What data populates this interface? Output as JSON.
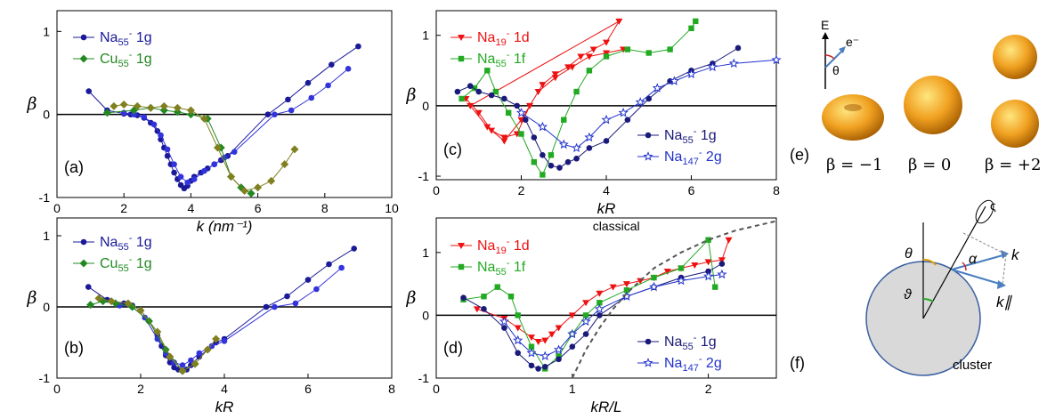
{
  "chart_data": [
    {
      "id": "a",
      "type": "line",
      "panel_label": "(a)",
      "xlabel": "k (nm⁻¹)",
      "ylabel": "β",
      "xlim": [
        0,
        10
      ],
      "ylim": [
        -1,
        1.25
      ],
      "xticks": [
        "0",
        "2",
        "4",
        "6",
        "8",
        "10"
      ],
      "yticks": [
        "-1",
        "0",
        "1"
      ],
      "series": [
        {
          "name": "Na55- 1g",
          "color": "#1a1a99",
          "marker": "circle",
          "x": [
            0.95,
            1.5,
            2.0,
            2.2,
            2.4,
            2.6,
            2.8,
            3.0,
            3.1,
            3.2,
            3.3,
            3.4,
            3.5,
            3.6,
            3.7,
            3.8,
            3.9,
            4.0,
            4.1,
            4.3,
            4.5,
            4.7,
            4.9,
            5.1,
            6.3,
            6.9,
            7.5,
            8.2,
            9.0
          ],
          "y": [
            0.28,
            0.05,
            0.01,
            0.0,
            -0.01,
            -0.04,
            -0.1,
            -0.2,
            -0.3,
            -0.4,
            -0.5,
            -0.6,
            -0.7,
            -0.78,
            -0.85,
            -0.89,
            -0.86,
            -0.8,
            -0.75,
            -0.7,
            -0.65,
            -0.6,
            -0.55,
            -0.5,
            0.0,
            0.18,
            0.38,
            0.6,
            0.82
          ]
        },
        {
          "name": "",
          "color": "#3333dd",
          "marker": "circle",
          "x": [
            2.0,
            2.3,
            2.6,
            2.9,
            3.1,
            3.3,
            3.5,
            3.7,
            3.9,
            4.1,
            4.4,
            4.7,
            5.0,
            5.3,
            6.5,
            7.0,
            7.6,
            8.1,
            8.7
          ],
          "y": [
            0.02,
            0.0,
            -0.03,
            -0.12,
            -0.25,
            -0.42,
            -0.6,
            -0.75,
            -0.82,
            -0.78,
            -0.68,
            -0.6,
            -0.52,
            -0.45,
            0.0,
            0.05,
            0.2,
            0.35,
            0.55
          ]
        },
        {
          "name": "Cu55- 1g",
          "color": "#228822",
          "marker": "diamond",
          "x": [
            1.5,
            2.3,
            2.8,
            3.2,
            3.6,
            4.0,
            4.5,
            4.9,
            5.2,
            5.5,
            5.8
          ],
          "y": [
            0.02,
            0.05,
            0.08,
            0.05,
            0.03,
            0.0,
            -0.05,
            -0.4,
            -0.75,
            -0.88,
            -0.95
          ]
        },
        {
          "name": "",
          "color": "#808020",
          "marker": "diamond",
          "x": [
            1.7,
            2.0,
            2.4,
            2.8,
            3.2,
            3.6,
            4.0,
            4.4,
            4.8,
            5.2,
            5.6,
            6.0,
            6.4,
            6.8,
            7.1
          ],
          "y": [
            0.1,
            0.12,
            0.1,
            0.08,
            0.1,
            0.08,
            0.05,
            -0.05,
            -0.4,
            -0.75,
            -0.92,
            -0.88,
            -0.8,
            -0.6,
            -0.42
          ]
        }
      ]
    },
    {
      "id": "b",
      "type": "line",
      "panel_label": "(b)",
      "xlabel": "kR",
      "ylabel": "β",
      "xlim": [
        0,
        8
      ],
      "ylim": [
        -1,
        1.25
      ],
      "xticks": [
        "0",
        "2",
        "4",
        "6",
        "8"
      ],
      "yticks": [
        "-1",
        "0",
        "1"
      ],
      "series": [
        {
          "name": "Na55- 1g",
          "color": "#1a1a99",
          "marker": "circle",
          "x": [
            0.75,
            1.2,
            1.6,
            1.8,
            2.0,
            2.2,
            2.4,
            2.5,
            2.6,
            2.7,
            2.8,
            2.9,
            3.0,
            3.1,
            3.2,
            3.4,
            3.6,
            3.8,
            4.0,
            5.0,
            5.5,
            6.0,
            6.5,
            7.1
          ],
          "y": [
            0.28,
            0.1,
            0.05,
            0.02,
            -0.05,
            -0.2,
            -0.4,
            -0.55,
            -0.68,
            -0.78,
            -0.85,
            -0.88,
            -0.9,
            -0.88,
            -0.82,
            -0.7,
            -0.6,
            -0.5,
            -0.45,
            0.0,
            0.15,
            0.38,
            0.6,
            0.82
          ]
        },
        {
          "name": "",
          "color": "#3333dd",
          "marker": "circle",
          "x": [
            1.5,
            1.8,
            2.1,
            2.4,
            2.6,
            2.8,
            3.0,
            3.2,
            3.4,
            3.7,
            4.0,
            5.2,
            5.7,
            6.2,
            6.8
          ],
          "y": [
            0.02,
            0.0,
            -0.15,
            -0.45,
            -0.65,
            -0.78,
            -0.82,
            -0.75,
            -0.65,
            -0.55,
            -0.48,
            0.0,
            0.05,
            0.25,
            0.55
          ]
        },
        {
          "name": "Cu55- 1g",
          "color": "#228822",
          "marker": "diamond",
          "x": [
            0.8,
            1.1,
            1.4,
            1.8,
            2.2,
            2.6,
            3.0,
            3.3
          ],
          "y": [
            0.03,
            0.08,
            0.05,
            0.0,
            -0.2,
            -0.6,
            -0.9,
            -0.8
          ]
        },
        {
          "name": "",
          "color": "#808020",
          "marker": "diamond",
          "x": [
            1.0,
            1.3,
            1.7,
            2.0,
            2.4,
            2.7,
            3.0,
            3.3,
            3.6,
            3.8
          ],
          "y": [
            0.12,
            0.08,
            0.05,
            -0.05,
            -0.35,
            -0.7,
            -0.9,
            -0.8,
            -0.6,
            -0.45
          ]
        }
      ]
    },
    {
      "id": "c",
      "type": "line",
      "panel_label": "(c)",
      "xlabel": "kR",
      "ylabel": "β",
      "xlim": [
        0,
        8
      ],
      "ylim": [
        -1.05,
        1.35
      ],
      "xticks": [
        "0",
        "2",
        "4",
        "6",
        "8"
      ],
      "yticks": [
        "-1",
        "0",
        "1"
      ],
      "series": [
        {
          "name": "Na19- 1d",
          "color": "#ee1111",
          "marker": "tri",
          "x": [
            0.7,
            1.0,
            1.3,
            1.6,
            1.9,
            2.2,
            2.5,
            2.8,
            3.1,
            3.4,
            3.7,
            4.0,
            4.3,
            0.8,
            1.2,
            1.6,
            2.0,
            2.4,
            2.8,
            3.2,
            3.6,
            4.0,
            4.4
          ],
          "y": [
            0.1,
            -0.1,
            -0.35,
            -0.45,
            -0.4,
            0.0,
            0.3,
            0.45,
            0.55,
            0.7,
            0.8,
            0.9,
            1.2,
            0.0,
            -0.3,
            -0.5,
            -0.2,
            0.2,
            0.4,
            0.55,
            0.7,
            0.75,
            0.8
          ]
        },
        {
          "name": "Na55- 1f",
          "color": "#22aa22",
          "marker": "square",
          "x": [
            0.6,
            0.9,
            1.2,
            1.4,
            1.7,
            2.0,
            2.3,
            2.5,
            2.7,
            3.0,
            3.3,
            3.6,
            4.0,
            4.5,
            5.0,
            5.5,
            6.0,
            6.1
          ],
          "y": [
            0.1,
            0.25,
            0.5,
            0.2,
            -0.1,
            -0.4,
            -0.8,
            -0.98,
            -0.7,
            -0.2,
            0.2,
            0.5,
            0.7,
            0.8,
            0.75,
            0.8,
            1.1,
            1.2
          ]
        },
        {
          "name": "Na55- 1g",
          "color": "#1a1a7a",
          "marker": "circle",
          "x": [
            0.5,
            0.8,
            1.0,
            1.3,
            1.6,
            1.9,
            2.1,
            2.3,
            2.5,
            2.7,
            2.9,
            3.1,
            3.3,
            3.6,
            4.0,
            4.5,
            5.0,
            5.5,
            6.0,
            6.5,
            7.1
          ],
          "y": [
            0.2,
            0.28,
            0.2,
            0.15,
            0.1,
            0.0,
            -0.2,
            -0.45,
            -0.7,
            -0.85,
            -0.88,
            -0.8,
            -0.75,
            -0.6,
            -0.5,
            -0.2,
            0.1,
            0.35,
            0.5,
            0.6,
            0.82
          ]
        },
        {
          "name": "Na147- 2g",
          "color": "#2233cc",
          "marker": "star",
          "x": [
            2.0,
            2.5,
            3.0,
            3.3,
            3.6,
            4.0,
            4.4,
            4.8,
            5.2,
            5.6,
            6.0,
            6.5,
            7.0,
            8.0
          ],
          "y": [
            -0.1,
            -0.3,
            -0.55,
            -0.6,
            -0.45,
            -0.2,
            -0.1,
            0.05,
            0.25,
            0.35,
            0.45,
            0.55,
            0.6,
            0.65
          ]
        }
      ]
    },
    {
      "id": "d",
      "type": "line",
      "panel_label": "(d)",
      "xlabel": "kR/L",
      "ylabel": "β",
      "xlim": [
        0,
        2.5
      ],
      "ylim": [
        -1,
        1.55
      ],
      "xticks": [
        "0",
        "1",
        "2"
      ],
      "yticks": [
        "-1",
        "0",
        "1"
      ],
      "annotation": "classical",
      "series": [
        {
          "name": "Na19- 1d",
          "color": "#ee1111",
          "marker": "tri",
          "x": [
            0.3,
            0.5,
            0.6,
            0.7,
            0.75,
            0.8,
            0.85,
            0.9,
            1.0,
            1.1,
            1.2,
            1.3,
            1.4,
            1.5,
            1.6,
            1.7,
            1.8,
            1.9,
            2.0,
            2.1,
            2.15
          ],
          "y": [
            0.1,
            -0.05,
            -0.2,
            -0.35,
            -0.42,
            -0.4,
            -0.3,
            -0.2,
            0.0,
            0.2,
            0.35,
            0.45,
            0.5,
            0.55,
            0.6,
            0.7,
            0.75,
            0.8,
            0.85,
            0.88,
            1.2
          ]
        },
        {
          "name": "Na55- 1f",
          "color": "#22aa22",
          "marker": "square",
          "x": [
            0.2,
            0.35,
            0.45,
            0.55,
            0.6,
            0.7,
            0.8,
            0.9,
            1.0,
            1.1,
            1.2,
            1.4,
            1.6,
            1.8,
            2.0,
            2.05
          ],
          "y": [
            0.25,
            0.3,
            0.45,
            0.3,
            0.0,
            -0.5,
            -0.85,
            -0.65,
            -0.3,
            0.0,
            0.2,
            0.4,
            0.6,
            0.75,
            1.2,
            0.45
          ]
        },
        {
          "name": "Na55- 1g",
          "color": "#1a1a7a",
          "marker": "circle",
          "x": [
            0.2,
            0.35,
            0.5,
            0.6,
            0.7,
            0.75,
            0.8,
            0.9,
            1.0,
            1.1,
            1.2,
            1.4,
            1.6,
            1.8,
            2.0,
            2.1
          ],
          "y": [
            0.28,
            0.1,
            -0.2,
            -0.6,
            -0.8,
            -0.85,
            -0.82,
            -0.7,
            -0.5,
            -0.3,
            0.0,
            0.3,
            0.45,
            0.6,
            0.7,
            0.82
          ]
        },
        {
          "name": "Na147- 2g",
          "color": "#2233cc",
          "marker": "star",
          "x": [
            0.5,
            0.6,
            0.7,
            0.8,
            0.9,
            1.0,
            1.1,
            1.2,
            1.4,
            1.6,
            1.8,
            2.0,
            2.1
          ],
          "y": [
            -0.1,
            -0.4,
            -0.6,
            -0.65,
            -0.55,
            -0.3,
            -0.1,
            0.1,
            0.3,
            0.45,
            0.55,
            0.62,
            0.65
          ]
        },
        {
          "name": "classical",
          "color": "#555555",
          "dashed": true,
          "x": [
            1.0,
            1.1,
            1.2,
            1.3,
            1.4,
            1.5,
            1.6,
            1.8,
            2.0,
            2.2,
            2.5
          ],
          "y": [
            -1.0,
            -0.55,
            -0.2,
            0.1,
            0.35,
            0.55,
            0.75,
            1.0,
            1.2,
            1.35,
            1.5
          ]
        }
      ]
    }
  ],
  "legends": {
    "a": [
      {
        "base": "Na",
        "sub": "55",
        "sup": "-",
        "rest": " 1g",
        "color": "#1a1a99",
        "marker": "circle"
      },
      {
        "base": "Cu",
        "sub": "55",
        "sup": "-",
        "rest": " 1g",
        "color": "#228822",
        "marker": "diamond"
      }
    ],
    "b": [
      {
        "base": "Na",
        "sub": "55",
        "sup": "-",
        "rest": " 1g",
        "color": "#1a1a99",
        "marker": "circle"
      },
      {
        "base": "Cu",
        "sub": "55",
        "sup": "-",
        "rest": " 1g",
        "color": "#228822",
        "marker": "diamond"
      }
    ],
    "c_top": [
      {
        "base": "Na",
        "sub": "19",
        "sup": "-",
        "rest": " 1d",
        "color": "#ee1111",
        "marker": "tri"
      },
      {
        "base": "Na",
        "sub": "55",
        "sup": "-",
        "rest": " 1f",
        "color": "#22aa22",
        "marker": "square"
      }
    ],
    "c_bot": [
      {
        "base": "Na",
        "sub": "55",
        "sup": "-",
        "rest": " 1g",
        "color": "#1a1a7a",
        "marker": "circle"
      },
      {
        "base": "Na",
        "sub": "147",
        "sup": "-",
        "rest": " 2g",
        "color": "#2233cc",
        "marker": "star"
      }
    ],
    "d_top": [
      {
        "base": "Na",
        "sub": "19",
        "sup": "-",
        "rest": " 1d",
        "color": "#ee1111",
        "marker": "tri"
      },
      {
        "base": "Na",
        "sub": "55",
        "sup": "-",
        "rest": " 1f",
        "color": "#22aa22",
        "marker": "square"
      }
    ],
    "d_bot": [
      {
        "base": "Na",
        "sub": "55",
        "sup": "-",
        "rest": " 1g",
        "color": "#1a1a7a",
        "marker": "circle"
      },
      {
        "base": "Na",
        "sub": "147",
        "sup": "-",
        "rest": " 2g",
        "color": "#2233cc",
        "marker": "star"
      }
    ]
  },
  "panel_e": {
    "label": "(e)",
    "axis_E": "E",
    "electron": "e⁻",
    "theta": "θ",
    "betas": [
      "β = −1",
      "β = 0",
      "β = +2"
    ]
  },
  "panel_f": {
    "label": "(f)",
    "theta": "θ",
    "vartheta": "ϑ",
    "alpha": "α",
    "k": "k",
    "k_par": "k∥",
    "cluster": "cluster"
  }
}
